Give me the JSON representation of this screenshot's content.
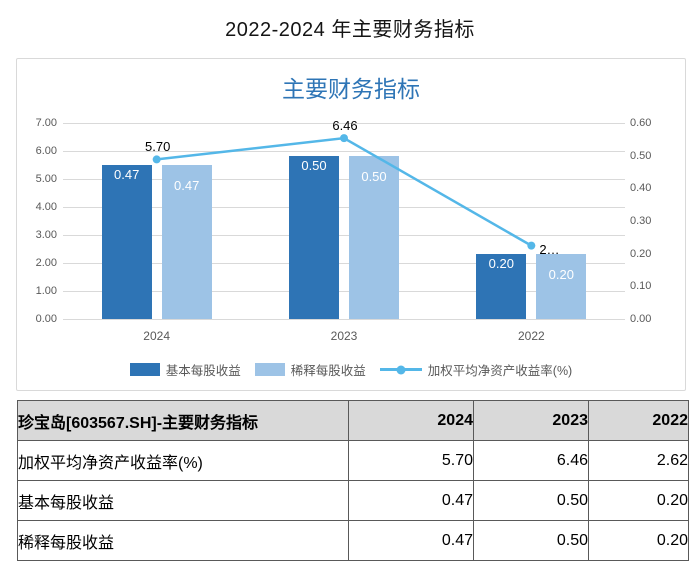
{
  "page": {
    "title": "2022-2024 年主要财务指标"
  },
  "chart": {
    "title": "主要财务指标",
    "colors": {
      "title": "#2e75b6",
      "axis_text": "#595959",
      "gridline": "#d9d9d9",
      "bar_label_text": "#ffffff",
      "line_label_text": "#000000",
      "card_border": "#d9d9d9"
    }
  },
  "chart_data": {
    "type": "bar",
    "subtype": "grouped bars + line (combo, dual axis)",
    "title": "主要财务指标",
    "categories": [
      "2024",
      "2023",
      "2022"
    ],
    "series": [
      {
        "key": "basic-eps",
        "name": "基本每股收益",
        "chart_type": "bar",
        "axis": "right",
        "values": [
          0.47,
          0.5,
          0.2
        ],
        "labels": [
          "0.47",
          "0.50",
          "0.20"
        ],
        "color": "#2e74b5"
      },
      {
        "key": "diluted-eps",
        "name": "稀释每股收益",
        "chart_type": "bar",
        "axis": "right",
        "values": [
          0.47,
          0.5,
          0.2
        ],
        "labels": [
          "0.47",
          "0.50",
          "0.20"
        ],
        "color": "#9dc3e6"
      },
      {
        "key": "roe",
        "name": "加权平均净资产收益率(%)",
        "chart_type": "line",
        "axis": "left",
        "values": [
          5.7,
          6.46,
          2.62
        ],
        "labels": [
          "5.70",
          "6.46",
          "2…"
        ],
        "color": "#54b7e8"
      }
    ],
    "left_axis": {
      "min": 0,
      "max": 7,
      "step": 1,
      "ticks": [
        "0.00",
        "1.00",
        "2.00",
        "3.00",
        "4.00",
        "5.00",
        "6.00",
        "7.00"
      ]
    },
    "right_axis": {
      "min": 0,
      "max": 0.6,
      "step": 0.1,
      "ticks": [
        "0.00",
        "0.10",
        "0.20",
        "0.30",
        "0.40",
        "0.50",
        "0.60"
      ]
    },
    "grid": true,
    "legend_position": "bottom"
  },
  "table": {
    "headers": [
      "珍宝岛[603567.SH]-主要财务指标",
      "2024",
      "2023",
      "2022"
    ],
    "rows": [
      {
        "label": "加权平均净资产收益率(%)",
        "values": [
          "5.70",
          "6.46",
          "2.62"
        ]
      },
      {
        "label": "基本每股收益",
        "values": [
          "0.47",
          "0.50",
          "0.20"
        ]
      },
      {
        "label": "稀释每股收益",
        "values": [
          "0.47",
          "0.50",
          "0.20"
        ]
      }
    ]
  }
}
